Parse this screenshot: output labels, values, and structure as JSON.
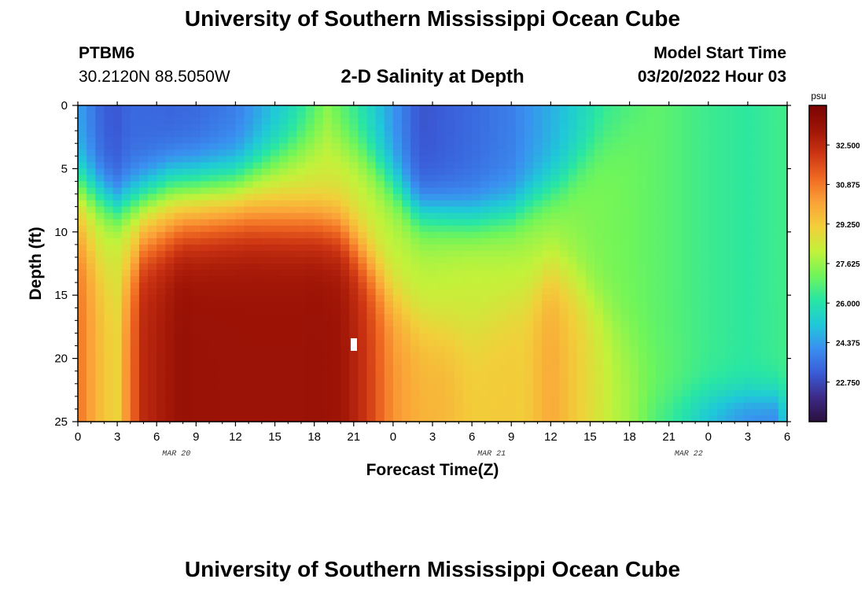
{
  "header": {
    "title": "University of Southern Mississippi Ocean Cube",
    "station_id": "PTBM6",
    "coords": "30.2120N  88.5050W",
    "plot_title": "2-D Salinity at Depth",
    "model_start_label": "Model Start Time",
    "model_start_value": "03/20/2022 Hour 03"
  },
  "footer": {
    "title": "University of Southern Mississippi Ocean Cube"
  },
  "chart_data": {
    "type": "heatmap",
    "title": "2-D Salinity at Depth",
    "xlabel": "Forecast Time(Z)",
    "ylabel": "Depth (ft)",
    "x_range_hours": [
      0,
      54
    ],
    "y_range_ft": [
      0,
      25
    ],
    "x_ticks": [
      "0",
      "3",
      "6",
      "9",
      "12",
      "15",
      "18",
      "21",
      "0",
      "3",
      "6",
      "9",
      "12",
      "15",
      "18",
      "21",
      "0",
      "3",
      "6"
    ],
    "y_ticks": [
      "0",
      "5",
      "10",
      "15",
      "20",
      "25"
    ],
    "date_labels": [
      {
        "label": "MAR 20",
        "hour": 7.5
      },
      {
        "label": "MAR 21",
        "hour": 31.5
      },
      {
        "label": "MAR 22",
        "hour": 46.5
      }
    ],
    "colorbar": {
      "unit": "psu",
      "range": [
        21.125,
        34.125
      ],
      "ticks": [
        "32.500",
        "30.875",
        "29.250",
        "27.625",
        "26.000",
        "24.375",
        "22.750"
      ],
      "colors": [
        "#2a0f3e",
        "#3c2a86",
        "#3a5cd8",
        "#3a8ff0",
        "#1fc9d8",
        "#28e6a4",
        "#6ff55a",
        "#c2f23a",
        "#f2cf3a",
        "#fba338",
        "#f06a22",
        "#cd3513",
        "#9e1406",
        "#7a0303"
      ]
    },
    "salinity_model": {
      "base": [
        [
          0,
          29.0
        ],
        [
          2,
          28.3
        ],
        [
          4,
          28.8
        ],
        [
          6,
          28.6
        ],
        [
          9,
          28.2
        ],
        [
          13,
          28.0
        ],
        [
          17,
          28.0
        ],
        [
          21,
          28.2
        ],
        [
          24,
          28.0
        ],
        [
          27,
          28.0
        ],
        [
          30,
          28.2
        ],
        [
          33,
          28.0
        ],
        [
          36,
          27.6
        ],
        [
          39,
          27.3
        ],
        [
          42,
          27.1
        ],
        [
          45,
          26.8
        ],
        [
          48,
          26.4
        ],
        [
          51,
          26.2
        ],
        [
          54,
          26.5
        ]
      ],
      "surface_fresh": [
        [
          0,
          -4.5
        ],
        [
          3,
          -5.5
        ],
        [
          7,
          -5.2
        ],
        [
          12,
          -4.3
        ],
        [
          16,
          -2.6
        ],
        [
          19,
          -0.8
        ],
        [
          22,
          -2.5
        ],
        [
          26,
          -5.0
        ],
        [
          30,
          -4.8
        ],
        [
          33,
          -4.2
        ],
        [
          37,
          -2.5
        ],
        [
          40,
          -1.0
        ],
        [
          44,
          0
        ],
        [
          50,
          0
        ],
        [
          54,
          0
        ]
      ],
      "fresh_depth": [
        [
          0,
          6.0
        ],
        [
          3,
          8.0
        ],
        [
          7,
          6.0
        ],
        [
          12,
          5.5
        ],
        [
          16,
          3.5
        ],
        [
          19,
          2.0
        ],
        [
          22,
          4.0
        ],
        [
          26,
          8.5
        ],
        [
          30,
          9.0
        ],
        [
          33,
          8.5
        ],
        [
          37,
          6.0
        ],
        [
          40,
          3.0
        ],
        [
          44,
          1.0
        ],
        [
          54,
          1.0
        ]
      ],
      "salt_wedge": [
        [
          0,
          2.0
        ],
        [
          3,
          0.5
        ],
        [
          5,
          3.8
        ],
        [
          8,
          5.0
        ],
        [
          13,
          5.2
        ],
        [
          18,
          5.2
        ],
        [
          20,
          5.0
        ],
        [
          22,
          4.0
        ],
        [
          24,
          2.4
        ],
        [
          26,
          1.8
        ],
        [
          28,
          1.6
        ],
        [
          30,
          1.0
        ],
        [
          34,
          1.3
        ],
        [
          36,
          2.4
        ],
        [
          38,
          1.8
        ],
        [
          41,
          0.8
        ],
        [
          44,
          0.2
        ],
        [
          48,
          0
        ],
        [
          54,
          0
        ]
      ],
      "wedge_top": [
        [
          0,
          10.0
        ],
        [
          3,
          15.0
        ],
        [
          5,
          11.0
        ],
        [
          8,
          9.5
        ],
        [
          13,
          8.8
        ],
        [
          18,
          9.0
        ],
        [
          20,
          9.5
        ],
        [
          22,
          12.0
        ],
        [
          24,
          15.0
        ],
        [
          26,
          17.0
        ],
        [
          28,
          17.5
        ],
        [
          30,
          18.0
        ],
        [
          34,
          15.0
        ],
        [
          36,
          13.0
        ],
        [
          38,
          14.0
        ],
        [
          41,
          17.0
        ],
        [
          44,
          20.0
        ],
        [
          48,
          22.0
        ],
        [
          54,
          22.0
        ]
      ],
      "bottom_fresh": [
        [
          0,
          0
        ],
        [
          42,
          0
        ],
        [
          46,
          -0.8
        ],
        [
          50,
          -2.0
        ],
        [
          53,
          -2.5
        ],
        [
          54,
          -1.2
        ]
      ]
    }
  }
}
